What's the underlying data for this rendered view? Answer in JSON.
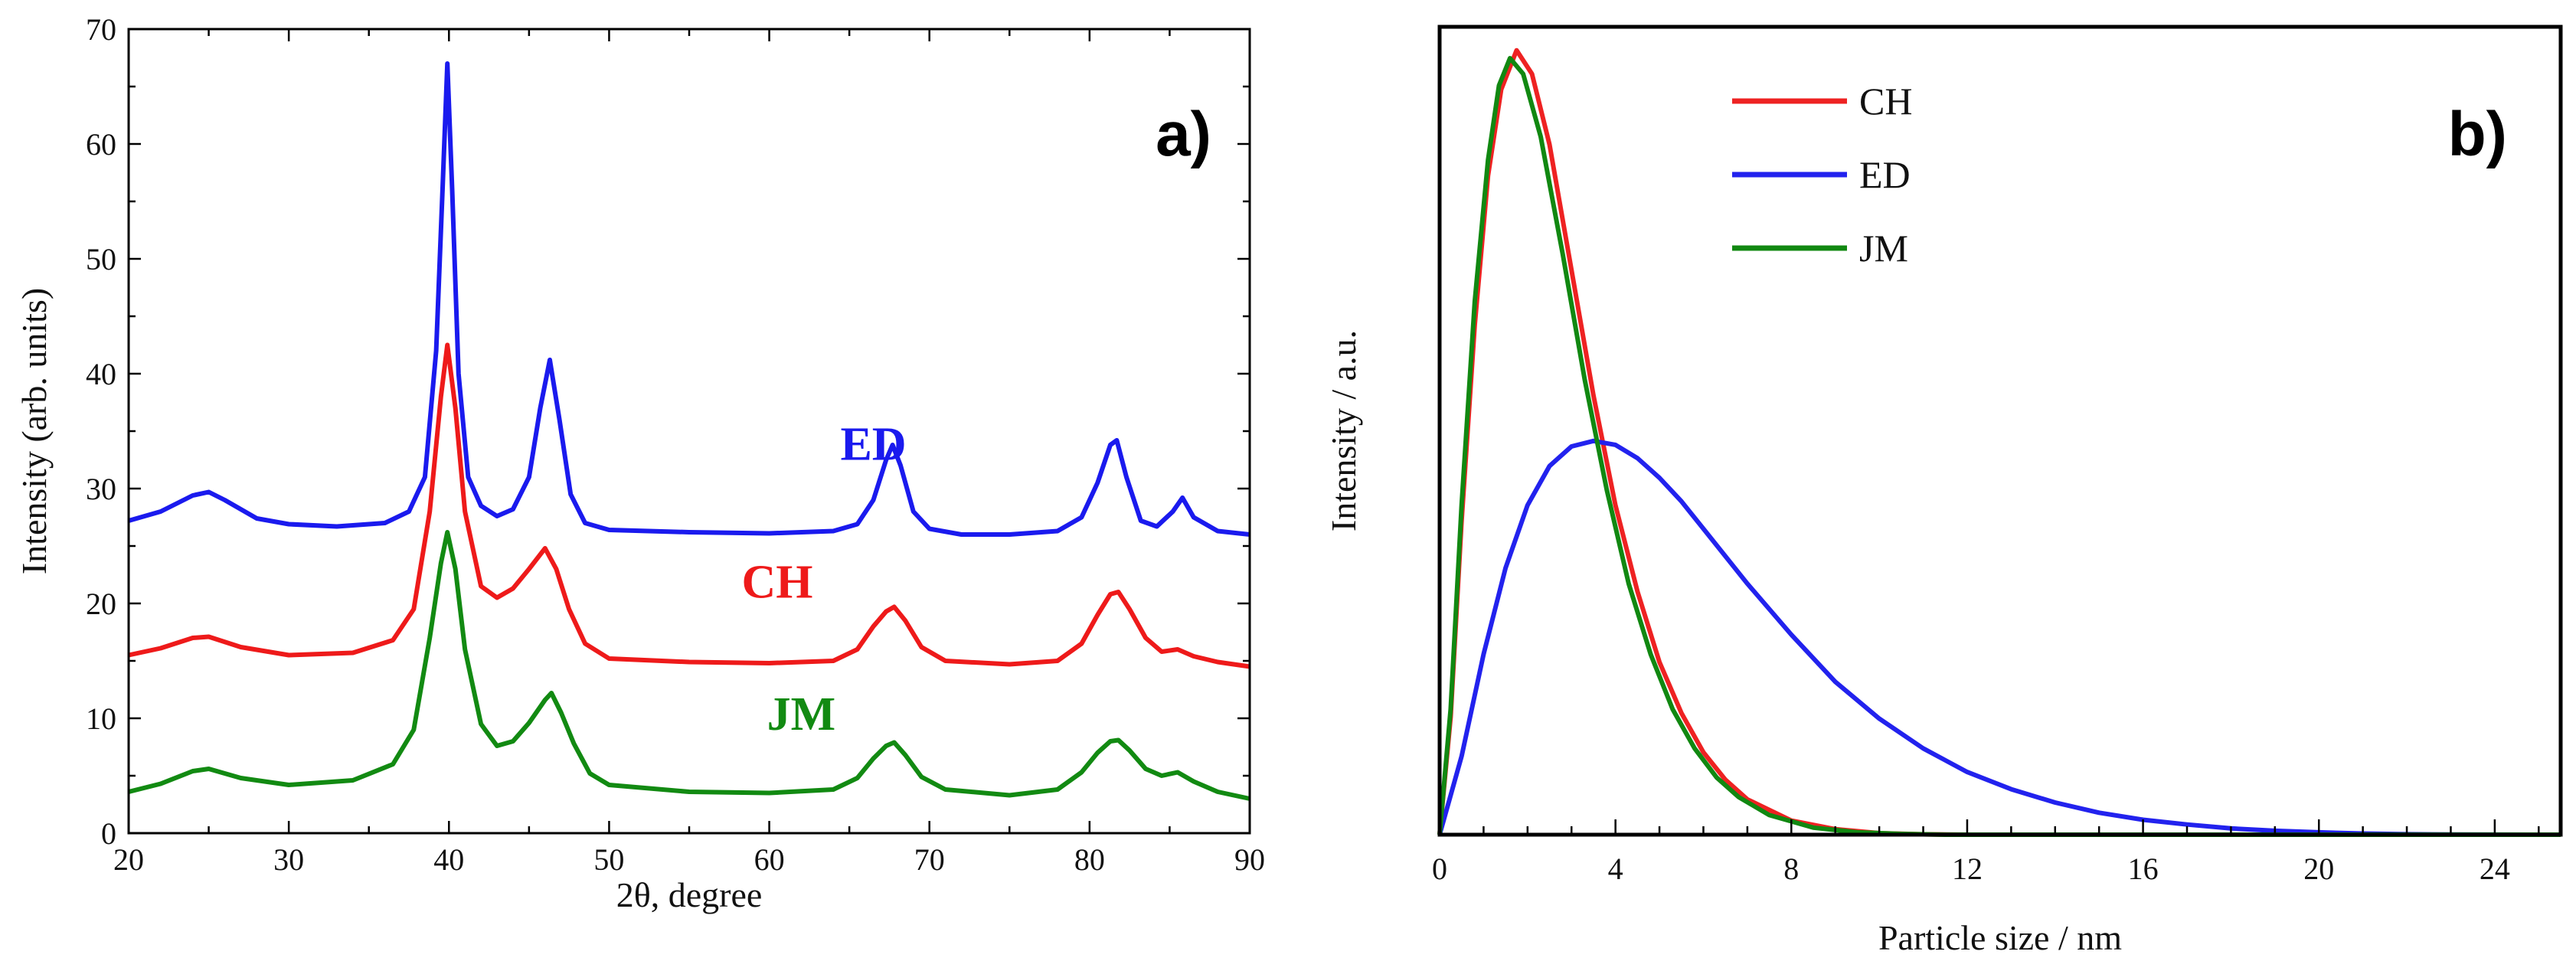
{
  "chart_data": [
    {
      "type": "line",
      "panel": "a)",
      "xlabel": "2θ, degree",
      "ylabel": "Intensity (arb. units)",
      "xlim": [
        20,
        90
      ],
      "ylim": [
        0,
        70
      ],
      "xticks": [
        20,
        30,
        40,
        50,
        60,
        70,
        80,
        90
      ],
      "yticks": [
        0,
        10,
        20,
        30,
        40,
        50,
        60,
        70
      ],
      "grid": false,
      "series": [
        {
          "name": "ED",
          "color": "#1a1aee",
          "points": [
            [
              20,
              27.2
            ],
            [
              22,
              28.0
            ],
            [
              24,
              29.4
            ],
            [
              25,
              29.7
            ],
            [
              26,
              29.0
            ],
            [
              28,
              27.4
            ],
            [
              30,
              26.9
            ],
            [
              33,
              26.7
            ],
            [
              36,
              27.0
            ],
            [
              37.5,
              28.0
            ],
            [
              38.5,
              31.0
            ],
            [
              39.2,
              42.0
            ],
            [
              39.6,
              56.0
            ],
            [
              39.9,
              67.0
            ],
            [
              40.2,
              56.0
            ],
            [
              40.6,
              40.0
            ],
            [
              41.2,
              31.0
            ],
            [
              42.0,
              28.5
            ],
            [
              43.0,
              27.6
            ],
            [
              44.0,
              28.2
            ],
            [
              45.0,
              31.0
            ],
            [
              45.7,
              37.0
            ],
            [
              46.3,
              41.2
            ],
            [
              46.9,
              36.0
            ],
            [
              47.6,
              29.5
            ],
            [
              48.5,
              27.0
            ],
            [
              50,
              26.4
            ],
            [
              55,
              26.2
            ],
            [
              60,
              26.1
            ],
            [
              64,
              26.3
            ],
            [
              65.5,
              26.9
            ],
            [
              66.5,
              29.0
            ],
            [
              67.3,
              32.5
            ],
            [
              67.7,
              33.8
            ],
            [
              68.2,
              32.0
            ],
            [
              69,
              28.0
            ],
            [
              70,
              26.5
            ],
            [
              72,
              26.0
            ],
            [
              75,
              26.0
            ],
            [
              78,
              26.3
            ],
            [
              79.5,
              27.5
            ],
            [
              80.5,
              30.5
            ],
            [
              81.3,
              33.8
            ],
            [
              81.7,
              34.2
            ],
            [
              82.3,
              31.0
            ],
            [
              83.2,
              27.2
            ],
            [
              84.2,
              26.7
            ],
            [
              85.2,
              28.0
            ],
            [
              85.8,
              29.2
            ],
            [
              86.5,
              27.5
            ],
            [
              88,
              26.3
            ],
            [
              90,
              26.0
            ]
          ]
        },
        {
          "name": "CH",
          "color": "#ee1a1a",
          "points": [
            [
              20,
              15.5
            ],
            [
              22,
              16.1
            ],
            [
              24,
              17.0
            ],
            [
              25,
              17.1
            ],
            [
              27,
              16.2
            ],
            [
              30,
              15.5
            ],
            [
              34,
              15.7
            ],
            [
              36.5,
              16.8
            ],
            [
              37.8,
              19.5
            ],
            [
              38.8,
              28.0
            ],
            [
              39.5,
              38.0
            ],
            [
              39.9,
              42.5
            ],
            [
              40.4,
              37.0
            ],
            [
              41.0,
              28.0
            ],
            [
              42.0,
              21.5
            ],
            [
              43.0,
              20.5
            ],
            [
              44.0,
              21.3
            ],
            [
              45.0,
              23.0
            ],
            [
              46.0,
              24.8
            ],
            [
              46.7,
              23.0
            ],
            [
              47.5,
              19.5
            ],
            [
              48.5,
              16.5
            ],
            [
              50,
              15.2
            ],
            [
              55,
              14.9
            ],
            [
              60,
              14.8
            ],
            [
              64,
              15.0
            ],
            [
              65.5,
              16.0
            ],
            [
              66.5,
              18.0
            ],
            [
              67.3,
              19.3
            ],
            [
              67.8,
              19.7
            ],
            [
              68.5,
              18.5
            ],
            [
              69.5,
              16.2
            ],
            [
              71,
              15.0
            ],
            [
              75,
              14.7
            ],
            [
              78,
              15.0
            ],
            [
              79.5,
              16.5
            ],
            [
              80.5,
              19.0
            ],
            [
              81.3,
              20.8
            ],
            [
              81.8,
              21.0
            ],
            [
              82.5,
              19.5
            ],
            [
              83.5,
              17.0
            ],
            [
              84.5,
              15.8
            ],
            [
              85.5,
              16.0
            ],
            [
              86.5,
              15.4
            ],
            [
              88,
              14.9
            ],
            [
              90,
              14.5
            ]
          ]
        },
        {
          "name": "JM",
          "color": "#128a12",
          "points": [
            [
              20,
              3.6
            ],
            [
              22,
              4.3
            ],
            [
              24,
              5.4
            ],
            [
              25,
              5.6
            ],
            [
              27,
              4.8
            ],
            [
              30,
              4.2
            ],
            [
              34,
              4.6
            ],
            [
              36.5,
              6.0
            ],
            [
              37.8,
              9.0
            ],
            [
              38.8,
              17.0
            ],
            [
              39.5,
              23.5
            ],
            [
              39.9,
              26.2
            ],
            [
              40.4,
              23.0
            ],
            [
              41.0,
              16.0
            ],
            [
              42.0,
              9.5
            ],
            [
              43.0,
              7.6
            ],
            [
              44.0,
              8.0
            ],
            [
              45.0,
              9.6
            ],
            [
              46.0,
              11.6
            ],
            [
              46.4,
              12.2
            ],
            [
              47.0,
              10.5
            ],
            [
              47.8,
              7.8
            ],
            [
              48.8,
              5.2
            ],
            [
              50,
              4.2
            ],
            [
              55,
              3.6
            ],
            [
              60,
              3.5
            ],
            [
              64,
              3.8
            ],
            [
              65.5,
              4.8
            ],
            [
              66.5,
              6.5
            ],
            [
              67.3,
              7.6
            ],
            [
              67.8,
              7.9
            ],
            [
              68.5,
              6.8
            ],
            [
              69.5,
              4.9
            ],
            [
              71,
              3.8
            ],
            [
              75,
              3.3
            ],
            [
              78,
              3.8
            ],
            [
              79.5,
              5.3
            ],
            [
              80.5,
              7.0
            ],
            [
              81.3,
              8.0
            ],
            [
              81.8,
              8.1
            ],
            [
              82.5,
              7.2
            ],
            [
              83.5,
              5.6
            ],
            [
              84.5,
              5.0
            ],
            [
              85.5,
              5.3
            ],
            [
              86.5,
              4.5
            ],
            [
              88,
              3.6
            ],
            [
              90,
              3.0
            ]
          ]
        }
      ],
      "annotations": [
        {
          "text": "ED",
          "color": "#1a1aee",
          "x": 66.5,
          "y": 32.5
        },
        {
          "text": "CH",
          "color": "#ee1a1a",
          "x": 60.5,
          "y": 20.5
        },
        {
          "text": "JM",
          "color": "#128a12",
          "x": 62.0,
          "y": 9.0
        }
      ]
    },
    {
      "type": "line",
      "panel": "b)",
      "xlabel": "Particle size / nm",
      "ylabel": "Intensity / a.u.",
      "xlim": [
        0,
        25.5
      ],
      "ylim": [
        0,
        1.03
      ],
      "xticks": [
        0,
        4,
        8,
        12,
        16,
        20,
        24
      ],
      "yticks": [],
      "grid": false,
      "legend_position": "top-center",
      "series": [
        {
          "name": "CH",
          "color": "#ee2222",
          "points": [
            [
              0,
              0
            ],
            [
              0.25,
              0.15
            ],
            [
              0.5,
              0.4
            ],
            [
              0.8,
              0.65
            ],
            [
              1.1,
              0.84
            ],
            [
              1.4,
              0.95
            ],
            [
              1.75,
              1.0
            ],
            [
              2.1,
              0.97
            ],
            [
              2.5,
              0.88
            ],
            [
              3.0,
              0.72
            ],
            [
              3.5,
              0.56
            ],
            [
              4.0,
              0.42
            ],
            [
              4.5,
              0.31
            ],
            [
              5.0,
              0.22
            ],
            [
              5.5,
              0.155
            ],
            [
              6.0,
              0.105
            ],
            [
              6.5,
              0.07
            ],
            [
              7.0,
              0.045
            ],
            [
              8.0,
              0.018
            ],
            [
              9.0,
              0.007
            ],
            [
              10.0,
              0.002
            ],
            [
              11.0,
              0.0005
            ],
            [
              12.0,
              0
            ],
            [
              25.5,
              0
            ]
          ]
        },
        {
          "name": "ED",
          "color": "#2222ee",
          "points": [
            [
              0,
              0
            ],
            [
              0.5,
              0.1
            ],
            [
              1.0,
              0.23
            ],
            [
              1.5,
              0.34
            ],
            [
              2.0,
              0.42
            ],
            [
              2.5,
              0.47
            ],
            [
              3.0,
              0.495
            ],
            [
              3.5,
              0.502
            ],
            [
              4.0,
              0.497
            ],
            [
              4.5,
              0.48
            ],
            [
              5.0,
              0.455
            ],
            [
              5.5,
              0.425
            ],
            [
              6.0,
              0.39
            ],
            [
              7.0,
              0.32
            ],
            [
              8.0,
              0.255
            ],
            [
              9.0,
              0.195
            ],
            [
              10.0,
              0.148
            ],
            [
              11.0,
              0.11
            ],
            [
              12.0,
              0.08
            ],
            [
              13.0,
              0.058
            ],
            [
              14.0,
              0.041
            ],
            [
              15.0,
              0.028
            ],
            [
              16.0,
              0.019
            ],
            [
              17.0,
              0.013
            ],
            [
              18.0,
              0.008
            ],
            [
              19.0,
              0.005
            ],
            [
              20.0,
              0.003
            ],
            [
              21.0,
              0.0015
            ],
            [
              22.0,
              0.0006
            ],
            [
              23.0,
              0.0002
            ],
            [
              25.5,
              0
            ]
          ]
        },
        {
          "name": "JM",
          "color": "#118811",
          "points": [
            [
              0,
              0
            ],
            [
              0.25,
              0.16
            ],
            [
              0.5,
              0.42
            ],
            [
              0.8,
              0.68
            ],
            [
              1.1,
              0.86
            ],
            [
              1.35,
              0.955
            ],
            [
              1.6,
              0.99
            ],
            [
              1.9,
              0.97
            ],
            [
              2.3,
              0.89
            ],
            [
              2.8,
              0.74
            ],
            [
              3.3,
              0.58
            ],
            [
              3.8,
              0.44
            ],
            [
              4.3,
              0.32
            ],
            [
              4.8,
              0.23
            ],
            [
              5.3,
              0.16
            ],
            [
              5.8,
              0.11
            ],
            [
              6.3,
              0.073
            ],
            [
              6.8,
              0.048
            ],
            [
              7.5,
              0.025
            ],
            [
              8.5,
              0.009
            ],
            [
              9.5,
              0.003
            ],
            [
              10.5,
              0.001
            ],
            [
              11.5,
              0
            ],
            [
              25.5,
              0
            ]
          ]
        }
      ]
    }
  ]
}
